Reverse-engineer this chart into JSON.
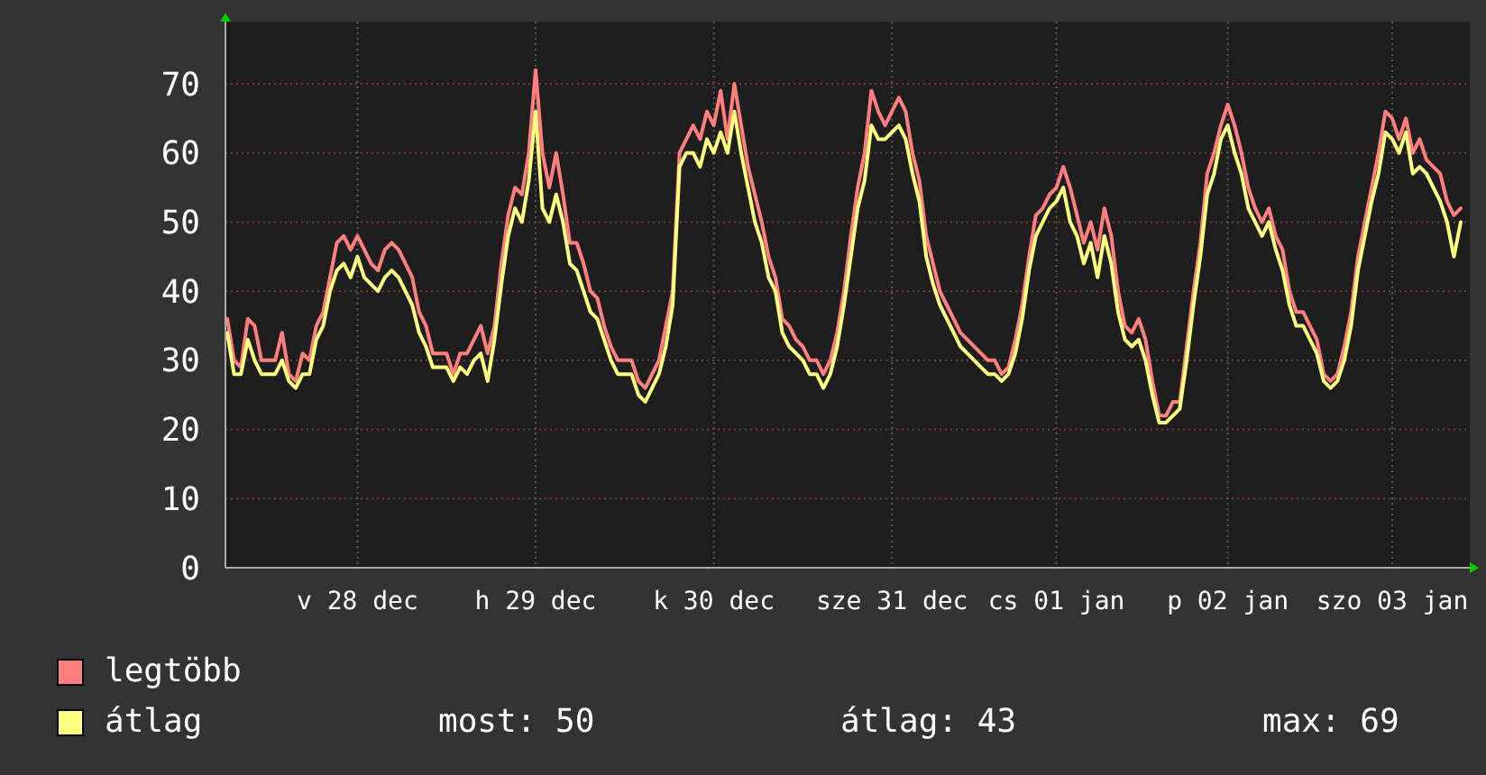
{
  "chart_data": {
    "type": "line",
    "series": [
      {
        "name": "legtöbb",
        "color": "#ff7f7f",
        "values": [
          36,
          30,
          29,
          36,
          35,
          30,
          30,
          30,
          34,
          28,
          27,
          31,
          30,
          35,
          37,
          42,
          47,
          48,
          46,
          48,
          46,
          44,
          43,
          46,
          47,
          46,
          44,
          42,
          37,
          35,
          31,
          31,
          31,
          28,
          31,
          31,
          33,
          35,
          31,
          35,
          44,
          51,
          55,
          54,
          60,
          72,
          60,
          55,
          60,
          54,
          47,
          47,
          44,
          40,
          39,
          35,
          32,
          30,
          30,
          30,
          27,
          26,
          28,
          30,
          35,
          40,
          60,
          62,
          64,
          62,
          66,
          64,
          69,
          62,
          70,
          64,
          58,
          54,
          50,
          45,
          42,
          36,
          35,
          33,
          32,
          30,
          30,
          28,
          30,
          34,
          40,
          48,
          55,
          60,
          69,
          66,
          64,
          66,
          68,
          66,
          60,
          56,
          48,
          44,
          40,
          38,
          36,
          34,
          33,
          32,
          31,
          30,
          30,
          28,
          29,
          33,
          38,
          45,
          51,
          52,
          54,
          55,
          58,
          55,
          51,
          47,
          50,
          46,
          52,
          48,
          40,
          35,
          34,
          36,
          33,
          27,
          22,
          22,
          24,
          24,
          32,
          40,
          47,
          57,
          60,
          64,
          67,
          64,
          60,
          55,
          52,
          50,
          52,
          48,
          46,
          40,
          37,
          37,
          35,
          33,
          28,
          27,
          28,
          32,
          37,
          45,
          50,
          55,
          60,
          66,
          65,
          62,
          65,
          60,
          62,
          59,
          58,
          57,
          53,
          51,
          52
        ]
      },
      {
        "name": "átlag",
        "color": "#ffff7f",
        "values": [
          34,
          28,
          28,
          33,
          30,
          28,
          28,
          28,
          30,
          27,
          26,
          28,
          28,
          33,
          35,
          40,
          43,
          44,
          42,
          45,
          42,
          41,
          40,
          42,
          43,
          42,
          40,
          38,
          34,
          32,
          29,
          29,
          29,
          27,
          29,
          28,
          30,
          31,
          27,
          33,
          41,
          48,
          52,
          50,
          56,
          66,
          52,
          50,
          54,
          50,
          44,
          43,
          40,
          37,
          36,
          33,
          30,
          28,
          28,
          28,
          25,
          24,
          26,
          28,
          32,
          38,
          58,
          60,
          60,
          58,
          62,
          60,
          63,
          60,
          66,
          60,
          55,
          50,
          47,
          42,
          40,
          34,
          32,
          31,
          30,
          28,
          28,
          26,
          28,
          32,
          38,
          45,
          52,
          56,
          64,
          62,
          62,
          63,
          64,
          62,
          57,
          53,
          45,
          41,
          38,
          36,
          34,
          32,
          31,
          30,
          29,
          28,
          28,
          27,
          28,
          31,
          36,
          43,
          48,
          50,
          52,
          53,
          55,
          50,
          48,
          44,
          47,
          42,
          48,
          44,
          37,
          33,
          32,
          33,
          30,
          25,
          21,
          21,
          22,
          23,
          30,
          38,
          45,
          54,
          57,
          62,
          64,
          60,
          57,
          52,
          50,
          48,
          50,
          46,
          43,
          38,
          35,
          35,
          33,
          31,
          27,
          26,
          27,
          30,
          35,
          43,
          48,
          53,
          57,
          63,
          62,
          60,
          63,
          57,
          58,
          57,
          55,
          53,
          50,
          45,
          50
        ]
      }
    ],
    "categories": [
      null,
      null,
      null,
      null,
      null,
      null,
      null,
      null,
      null,
      null,
      null,
      null,
      null,
      null,
      null,
      null,
      null,
      null,
      null,
      "v 28 dec",
      null,
      null,
      null,
      null,
      null,
      null,
      null,
      null,
      null,
      null,
      null,
      null,
      null,
      null,
      null,
      null,
      null,
      null,
      null,
      null,
      null,
      null,
      null,
      null,
      null,
      "h 29 dec",
      null,
      null,
      null,
      null,
      null,
      null,
      null,
      null,
      null,
      null,
      null,
      null,
      null,
      null,
      null,
      null,
      null,
      null,
      null,
      null,
      null,
      null,
      null,
      null,
      null,
      "k 30 dec",
      null,
      null,
      null,
      null,
      null,
      null,
      null,
      null,
      null,
      null,
      null,
      null,
      null,
      null,
      null,
      null,
      null,
      null,
      null,
      null,
      null,
      null,
      null,
      null,
      null,
      "sze 31 dec",
      null,
      null,
      null,
      null,
      null,
      null,
      null,
      null,
      null,
      null,
      null,
      null,
      null,
      null,
      null,
      null,
      null,
      null,
      null,
      null,
      null,
      null,
      null,
      "cs 01 jan",
      null,
      null,
      null,
      null,
      null,
      null,
      null,
      null,
      null,
      null,
      null,
      null,
      null,
      null,
      null,
      null,
      null,
      null,
      null,
      null,
      null,
      null,
      null,
      null,
      "p 02 jan",
      null,
      null,
      null,
      null,
      null,
      null,
      null,
      null,
      null,
      null,
      null,
      null,
      null,
      null,
      null,
      null,
      null,
      null,
      null,
      null,
      null,
      null,
      null,
      "szo 03 jan",
      null,
      null,
      null,
      null,
      null,
      null,
      null,
      null,
      null,
      null
    ],
    "ylim": [
      0,
      79
    ],
    "yticks": [
      0,
      10,
      20,
      30,
      40,
      50,
      60,
      70
    ],
    "grid": true,
    "legend": "bottom",
    "marker": "none",
    "line_style": "solid",
    "annotations": [
      "most: 50",
      "átlag: 43",
      "max: 69"
    ]
  }
}
